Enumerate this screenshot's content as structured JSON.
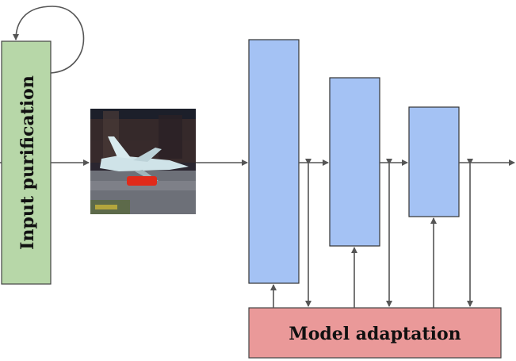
{
  "diagram": {
    "input_block": {
      "label": "Input purification",
      "fill": "#b7d7a8",
      "stroke": "#444444"
    },
    "image": {
      "icon": "airplane-photo-icon",
      "sky": "#1c1f2a",
      "trees": "#3a2b2a",
      "ground": "#6d7078",
      "plane": "#cfe3e8",
      "accent": "#e02a1a"
    },
    "layers": {
      "fill": "#a4c2f4",
      "stroke": "#333333"
    },
    "adapter_block": {
      "label": "Model adaptation",
      "fill": "#ea9999",
      "stroke": "#444444"
    },
    "edge_color": "#555555"
  }
}
